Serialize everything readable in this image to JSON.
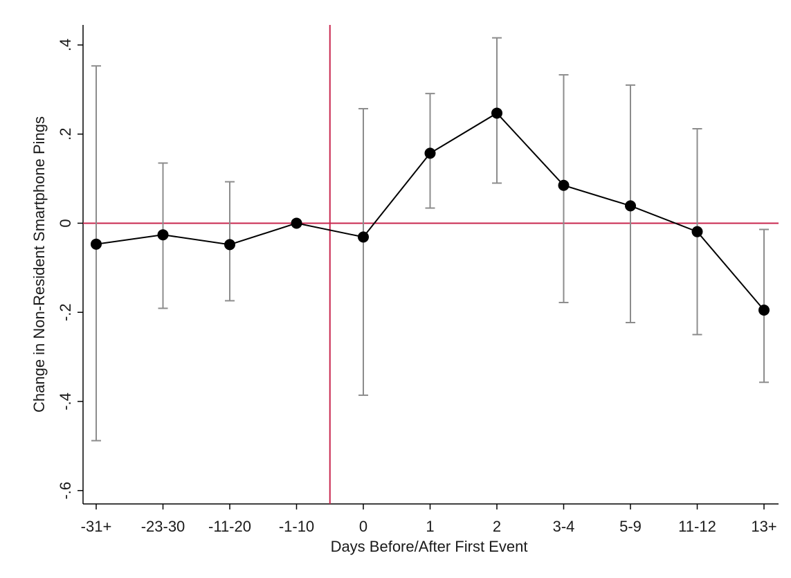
{
  "chart_data": {
    "type": "line",
    "x_label": "Days Before/After First Event",
    "y_label": "Change in Non-Resident Smartphone Pings",
    "categories": [
      "-31+",
      "-23-30",
      "-11-20",
      "-1-10",
      "0",
      "1",
      "2",
      "3-4",
      "5-9",
      "11-12",
      "13+"
    ],
    "series": [
      {
        "color": "#000000",
        "error_color": "#8c8c8c",
        "values": [
          -0.047,
          -0.026,
          -0.048,
          0,
          -0.031,
          0.157,
          0.247,
          0.085,
          0.039,
          -0.019,
          -0.195
        ],
        "lower": [
          -0.488,
          -0.191,
          -0.174,
          null,
          -0.386,
          0.034,
          0.09,
          -0.178,
          -0.223,
          -0.25,
          -0.357
        ],
        "upper": [
          0.353,
          0.135,
          0.093,
          null,
          0.257,
          0.291,
          0.416,
          0.333,
          0.31,
          0.212,
          -0.014
        ]
      }
    ],
    "ylim": [
      -0.63,
      0.445
    ],
    "yticks": [
      {
        "value": 0.4,
        "label": ".4"
      },
      {
        "value": 0.2,
        "label": ".2"
      },
      0,
      {
        "value": -0.2,
        "label": "-.2"
      },
      {
        "value": -0.4,
        "label": "-.4"
      },
      {
        "value": -0.6,
        "label": "-.6"
      }
    ],
    "reference_line_y": 0,
    "reference_line_x_index": 3.5,
    "reference_color": "#c8264e",
    "grid": false
  }
}
